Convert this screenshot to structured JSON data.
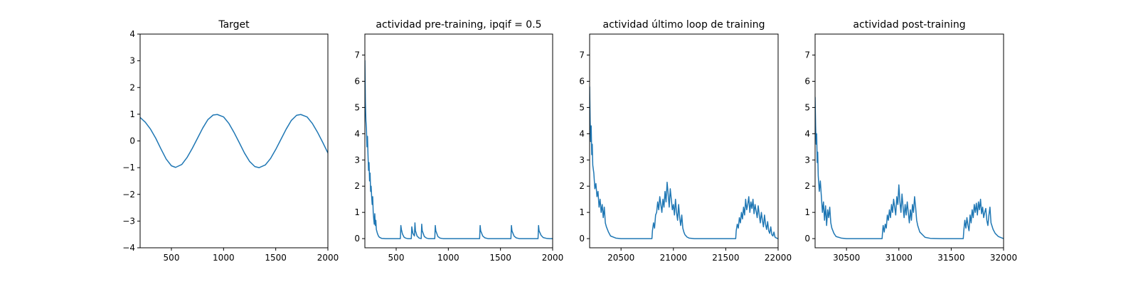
{
  "chart_data": [
    {
      "type": "line",
      "title": "Target",
      "xlim": [
        200,
        2000
      ],
      "ylim": [
        -4,
        4
      ],
      "xticks": [
        500,
        1000,
        1500,
        2000
      ],
      "yticks": [
        -4,
        -3,
        -2,
        -1,
        0,
        1,
        2,
        3,
        4
      ],
      "xtick_labels": [
        "500",
        "1000",
        "1500",
        "2000"
      ],
      "ytick_labels": [
        "−4",
        "−3",
        "−2",
        "−1",
        "0",
        "1",
        "2",
        "3",
        "4"
      ],
      "color": "#1f77b4",
      "series": [
        {
          "x": [
            200,
            250,
            300,
            350,
            400,
            450,
            500,
            540,
            600,
            650,
            700,
            750,
            800,
            850,
            900,
            940,
            1000,
            1050,
            1100,
            1150,
            1200,
            1250,
            1300,
            1340,
            1400,
            1450,
            1500,
            1550,
            1600,
            1650,
            1700,
            1740,
            1800,
            1850,
            1900,
            1950,
            2000
          ],
          "y": [
            0.88,
            0.7,
            0.44,
            0.1,
            -0.3,
            -0.68,
            -0.93,
            -0.99,
            -0.88,
            -0.62,
            -0.28,
            0.1,
            0.48,
            0.8,
            0.97,
            0.99,
            0.9,
            0.66,
            0.32,
            -0.06,
            -0.45,
            -0.77,
            -0.96,
            -1.0,
            -0.9,
            -0.66,
            -0.32,
            0.06,
            0.44,
            0.77,
            0.96,
            0.99,
            0.9,
            0.66,
            0.33,
            -0.05,
            -0.45
          ]
        }
      ]
    },
    {
      "type": "line",
      "title": "actividad pre-training, ipqif = 0.5",
      "xlim": [
        200,
        2000
      ],
      "ylim": [
        -0.35,
        7.8
      ],
      "xticks": [
        500,
        1000,
        1500,
        2000
      ],
      "yticks": [
        0,
        1,
        2,
        3,
        4,
        5,
        6,
        7
      ],
      "xtick_labels": [
        "500",
        "1000",
        "1500",
        "2000"
      ],
      "ytick_labels": [
        "0",
        "1",
        "2",
        "3",
        "4",
        "5",
        "6",
        "7"
      ],
      "color": "#1f77b4",
      "series": [
        {
          "x": [
            200,
            205,
            210,
            215,
            220,
            225,
            230,
            235,
            240,
            245,
            250,
            255,
            260,
            265,
            270,
            275,
            280,
            285,
            290,
            295,
            300,
            305,
            310,
            320,
            330,
            340,
            360,
            400,
            450,
            540,
            545,
            550,
            560,
            575,
            590,
            610,
            630,
            645,
            650,
            660,
            675,
            680,
            685,
            700,
            720,
            740,
            745,
            750,
            770,
            790,
            810,
            860,
            870,
            875,
            880,
            900,
            920,
            950,
            1000,
            1100,
            1200,
            1300,
            1305,
            1310,
            1330,
            1350,
            1380,
            1400,
            1500,
            1600,
            1605,
            1610,
            1630,
            1650,
            1680,
            1700,
            1800,
            1860,
            1865,
            1870,
            1890,
            1910,
            1940,
            1970,
            2000
          ],
          "y": [
            6.8,
            5.2,
            4.5,
            4.2,
            3.5,
            3.9,
            3.2,
            2.6,
            2.9,
            2.2,
            2.5,
            1.8,
            2.0,
            1.6,
            1.3,
            1.6,
            1.0,
            0.75,
            0.55,
            0.95,
            0.5,
            0.7,
            0.35,
            0.2,
            0.1,
            0.05,
            0.01,
            0.0,
            0.0,
            0.0,
            0.5,
            0.35,
            0.18,
            0.06,
            0.02,
            0.0,
            0.0,
            0.0,
            0.45,
            0.2,
            0.1,
            0.6,
            0.3,
            0.1,
            0.02,
            0.0,
            0.55,
            0.3,
            0.08,
            0.02,
            0.0,
            0.0,
            0.0,
            0.5,
            0.3,
            0.08,
            0.02,
            0.0,
            0.0,
            0.0,
            0.0,
            0.0,
            0.5,
            0.3,
            0.1,
            0.03,
            0.0,
            0.0,
            0.0,
            0.0,
            0.5,
            0.3,
            0.1,
            0.03,
            0.0,
            0.0,
            0.0,
            0.0,
            0.5,
            0.3,
            0.12,
            0.04,
            0.01,
            0.0,
            0.0
          ]
        }
      ]
    },
    {
      "type": "line",
      "title": "actividad último loop de training",
      "xlim": [
        20200,
        22000
      ],
      "ylim": [
        -0.35,
        7.8
      ],
      "xticks": [
        20500,
        21000,
        21500,
        22000
      ],
      "yticks": [
        0,
        1,
        2,
        3,
        4,
        5,
        6,
        7
      ],
      "xtick_labels": [
        "20500",
        "21000",
        "21500",
        "22000"
      ],
      "ytick_labels": [
        "0",
        "1",
        "2",
        "3",
        "4",
        "5",
        "6",
        "7"
      ],
      "color": "#1f77b4",
      "series": [
        {
          "x": [
            20200,
            20205,
            20210,
            20215,
            20220,
            20225,
            20230,
            20240,
            20250,
            20260,
            20270,
            20280,
            20290,
            20300,
            20310,
            20320,
            20330,
            20340,
            20350,
            20360,
            20380,
            20400,
            20450,
            20500,
            20600,
            20700,
            20795,
            20800,
            20810,
            20820,
            20830,
            20840,
            20850,
            20860,
            20870,
            20880,
            20890,
            20900,
            20910,
            20920,
            20930,
            20940,
            20950,
            20960,
            20970,
            20980,
            20990,
            21000,
            21010,
            21020,
            21030,
            21040,
            21050,
            21060,
            21070,
            21080,
            21090,
            21100,
            21110,
            21130,
            21150,
            21200,
            21300,
            21400,
            21500,
            21595,
            21600,
            21610,
            21620,
            21630,
            21640,
            21650,
            21660,
            21670,
            21680,
            21690,
            21700,
            21710,
            21720,
            21730,
            21740,
            21750,
            21760,
            21770,
            21780,
            21790,
            21800,
            21810,
            21820,
            21830,
            21840,
            21850,
            21860,
            21870,
            21880,
            21890,
            21900,
            21910,
            21920,
            21930,
            21940,
            21950,
            21960,
            21970,
            21980,
            21990,
            22000
          ],
          "y": [
            5.8,
            4.5,
            3.7,
            4.3,
            3.2,
            3.6,
            2.8,
            2.5,
            1.9,
            2.1,
            1.6,
            1.8,
            1.2,
            1.5,
            1.0,
            1.3,
            0.8,
            1.2,
            0.6,
            0.45,
            0.25,
            0.1,
            0.02,
            0.0,
            0.0,
            0.0,
            0.0,
            0.3,
            0.6,
            0.4,
            0.9,
            1.0,
            1.4,
            1.1,
            1.6,
            1.3,
            1.0,
            1.5,
            1.2,
            1.8,
            1.4,
            2.15,
            1.7,
            1.2,
            1.9,
            1.5,
            1.1,
            1.3,
            0.9,
            1.5,
            1.0,
            0.7,
            1.3,
            0.8,
            0.5,
            0.9,
            0.4,
            0.25,
            0.15,
            0.06,
            0.02,
            0.0,
            0.0,
            0.0,
            0.0,
            0.0,
            0.3,
            0.55,
            0.4,
            0.8,
            0.6,
            1.0,
            0.75,
            1.2,
            0.9,
            1.5,
            1.1,
            1.3,
            1.6,
            1.0,
            1.4,
            1.15,
            1.5,
            0.95,
            1.3,
            1.05,
            0.8,
            1.25,
            0.9,
            0.6,
            1.0,
            0.7,
            0.45,
            0.9,
            0.55,
            0.35,
            0.65,
            0.3,
            0.2,
            0.45,
            0.15,
            0.1,
            0.25,
            0.06,
            0.03,
            0.01,
            0.0
          ]
        }
      ]
    },
    {
      "type": "line",
      "title": "actividad post-training",
      "xlim": [
        30200,
        32000
      ],
      "ylim": [
        -0.35,
        7.8
      ],
      "xticks": [
        30500,
        31000,
        31500,
        32000
      ],
      "yticks": [
        0,
        1,
        2,
        3,
        4,
        5,
        6,
        7
      ],
      "xtick_labels": [
        "30500",
        "31000",
        "31500",
        "32000"
      ],
      "ytick_labels": [
        "0",
        "1",
        "2",
        "3",
        "4",
        "5",
        "6",
        "7"
      ],
      "color": "#1f77b4",
      "series": [
        {
          "x": [
            30200,
            30205,
            30210,
            30215,
            30220,
            30225,
            30230,
            30240,
            30250,
            30260,
            30270,
            30280,
            30290,
            30300,
            30310,
            30320,
            30330,
            30340,
            30350,
            30360,
            30380,
            30400,
            30450,
            30500,
            30600,
            30700,
            30840,
            30845,
            30850,
            30860,
            30870,
            30880,
            30890,
            30900,
            30910,
            30920,
            30930,
            30940,
            30950,
            30960,
            30970,
            30980,
            30990,
            31000,
            31010,
            31020,
            31030,
            31040,
            31050,
            31060,
            31070,
            31080,
            31090,
            31100,
            31110,
            31120,
            31130,
            31140,
            31150,
            31160,
            31170,
            31180,
            31200,
            31250,
            31300,
            31400,
            31500,
            31615,
            31620,
            31630,
            31640,
            31650,
            31660,
            31670,
            31680,
            31690,
            31700,
            31710,
            31720,
            31730,
            31740,
            31750,
            31760,
            31770,
            31780,
            31790,
            31800,
            31810,
            31820,
            31830,
            31840,
            31850,
            31860,
            31870,
            31880,
            31900,
            31920,
            31950,
            31980,
            32000
          ],
          "y": [
            5.4,
            4.3,
            3.6,
            4.0,
            2.9,
            3.3,
            2.4,
            1.8,
            2.2,
            1.6,
            1.0,
            1.4,
            0.7,
            1.25,
            0.5,
            1.1,
            0.8,
            1.2,
            0.6,
            0.4,
            0.2,
            0.08,
            0.02,
            0.0,
            0.0,
            0.0,
            0.0,
            0.3,
            0.5,
            0.25,
            0.55,
            0.4,
            0.9,
            0.7,
            1.1,
            0.8,
            1.3,
            1.0,
            1.5,
            1.2,
            0.9,
            1.6,
            1.3,
            2.05,
            1.4,
            1.0,
            1.7,
            1.2,
            0.8,
            1.3,
            0.9,
            1.4,
            1.0,
            0.6,
            1.1,
            0.7,
            1.3,
            1.0,
            1.6,
            1.2,
            0.7,
            0.5,
            0.25,
            0.05,
            0.01,
            0.0,
            0.0,
            0.0,
            0.3,
            0.7,
            0.4,
            0.8,
            0.5,
            0.3,
            0.9,
            0.6,
            1.1,
            0.8,
            1.3,
            1.0,
            1.35,
            0.9,
            1.4,
            1.1,
            1.5,
            0.95,
            1.2,
            0.8,
            1.0,
            1.15,
            0.7,
            0.5,
            0.9,
            1.2,
            0.6,
            0.35,
            0.2,
            0.08,
            0.03,
            0.0
          ]
        }
      ]
    }
  ]
}
